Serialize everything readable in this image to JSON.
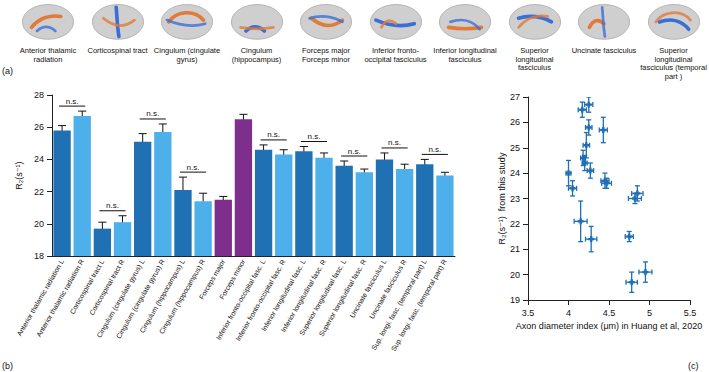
{
  "panel_a": {
    "label": "(a)",
    "tracts": [
      "Anterior thalamic radiation",
      "Corticospinal tract",
      "Cingulum (cingulate gyrus)",
      "Cingulum (hippocampus)",
      "Forceps major Forceps minor",
      "Inferior fronto-occipital fasciculus",
      "Inferior longitudinal fasciculus",
      "Superior longitudinal fasciculus",
      "Uncinate fasciculus",
      "Superior longitudinal fasciculus (temporal part )"
    ]
  },
  "chart_data": [
    {
      "type": "bar",
      "title": "(b)",
      "categories": [
        "Anterior thalamic radiation L",
        "Anterior thalamic radiation R",
        "Corticospinal tract L",
        "Corticospinal tract R",
        "Cingulum (cingulate gyrus) L",
        "Cingulum (cingulate gyrus) R",
        "Cingulum (hippocampus) L",
        "Cingulum (hippocampus) R",
        "Forceps major",
        "Forceps minor",
        "Inferior fronto-occipital fasc. L",
        "Inferior fronto-occipital fasc. R",
        "Inferior longitudinal fasc. L",
        "Inferior longitudinal fasc. R",
        "Superior longitudinal fasc. L",
        "Superior longitudinal fasc. R",
        "Uncinate fasciculus L",
        "Uncinate fasciculus R",
        "Sup. longi. fasc. (temporal part) L",
        "Sup. longi. fasc. (temporal part) R"
      ],
      "values": [
        25.8,
        26.7,
        19.7,
        20.1,
        25.1,
        25.7,
        22.1,
        21.4,
        21.5,
        26.5,
        24.6,
        24.3,
        24.5,
        24.1,
        23.6,
        23.2,
        24.0,
        23.4,
        23.7,
        23.0
      ],
      "errors": [
        0.3,
        0.3,
        0.4,
        0.4,
        0.5,
        0.5,
        0.8,
        0.5,
        0.2,
        0.3,
        0.3,
        0.3,
        0.3,
        0.3,
        0.3,
        0.2,
        0.4,
        0.3,
        0.3,
        0.2
      ],
      "colors": [
        "#2070b4",
        "#4db0ea",
        "#2070b4",
        "#4db0ea",
        "#2070b4",
        "#4db0ea",
        "#2070b4",
        "#4db0ea",
        "#7e2f8e",
        "#7e2f8e",
        "#2070b4",
        "#4db0ea",
        "#2070b4",
        "#4db0ea",
        "#2070b4",
        "#4db0ea",
        "#2070b4",
        "#4db0ea",
        "#2070b4",
        "#4db0ea"
      ],
      "y_label": "R₂(s⁻¹)",
      "ylim": [
        18,
        28
      ],
      "yticks": [
        18,
        20,
        22,
        24,
        26,
        28
      ],
      "grid": false,
      "annotations": [
        {
          "text": "n.s.",
          "between": [
            "Anterior thalamic radiation L",
            "Anterior thalamic radiation R"
          ]
        },
        {
          "text": "n.s.",
          "between": [
            "Corticospinal tract L",
            "Corticospinal tract R"
          ]
        },
        {
          "text": "n.s.",
          "between": [
            "Cingulum (cingulate gyrus) L",
            "Cingulum (cingulate gyrus) R"
          ]
        },
        {
          "text": "n.s.",
          "between": [
            "Cingulum (hippocampus) L",
            "Cingulum (hippocampus) R"
          ]
        },
        {
          "text": "n.s.",
          "between": [
            "Inferior fronto-occipital fasc. L",
            "Inferior fronto-occipital fasc. R"
          ]
        },
        {
          "text": "n.s.",
          "between": [
            "Inferior longitudinal fasc. L",
            "Inferior longitudinal fasc. R"
          ]
        },
        {
          "text": "n.s.",
          "between": [
            "Superior longitudinal fasc. L",
            "Superior longitudinal fasc. R"
          ]
        },
        {
          "text": "n.s.",
          "between": [
            "Uncinate fasciculus L",
            "Uncinate fasciculus R"
          ]
        },
        {
          "text": "n.s.",
          "between": [
            "Sup. longi. fasc. (temporal part) L",
            "Sup. longi. fasc. (temporal part) R"
          ]
        }
      ]
    },
    {
      "type": "scatter",
      "title": "(c)",
      "x": [
        4.0,
        4.05,
        4.15,
        4.17,
        4.18,
        4.2,
        4.22,
        4.25,
        4.25,
        4.27,
        4.28,
        4.43,
        4.45,
        4.47,
        4.75,
        4.78,
        4.82,
        4.85,
        4.95
      ],
      "values": [
        24.0,
        23.4,
        22.1,
        26.5,
        24.6,
        24.4,
        25.1,
        26.7,
        25.8,
        24.1,
        21.4,
        25.7,
        23.7,
        23.6,
        21.5,
        19.7,
        23.0,
        23.2,
        20.1
      ],
      "x_errors": [
        0.03,
        0.05,
        0.08,
        0.05,
        0.03,
        0.03,
        0.04,
        0.05,
        0.04,
        0.04,
        0.07,
        0.05,
        0.05,
        0.06,
        0.05,
        0.07,
        0.08,
        0.07,
        0.08
      ],
      "y_errors": [
        0.5,
        0.3,
        0.8,
        0.3,
        0.3,
        0.3,
        0.5,
        0.3,
        0.3,
        0.3,
        0.5,
        0.5,
        0.3,
        0.2,
        0.2,
        0.4,
        0.2,
        0.3,
        0.4
      ],
      "color": "#1f6fb4",
      "marker": "cross",
      "x_label": "Axon diameter index (μm) in Huang et al, 2020",
      "y_label": "R₂(s⁻¹)  from this study",
      "xlim": [
        3.5,
        5.5
      ],
      "xticks": [
        3.5,
        4,
        4.5,
        5,
        5.5
      ],
      "ylim": [
        19,
        27
      ],
      "yticks": [
        19,
        20,
        21,
        22,
        23,
        24,
        25,
        26,
        27
      ],
      "grid": false
    }
  ]
}
